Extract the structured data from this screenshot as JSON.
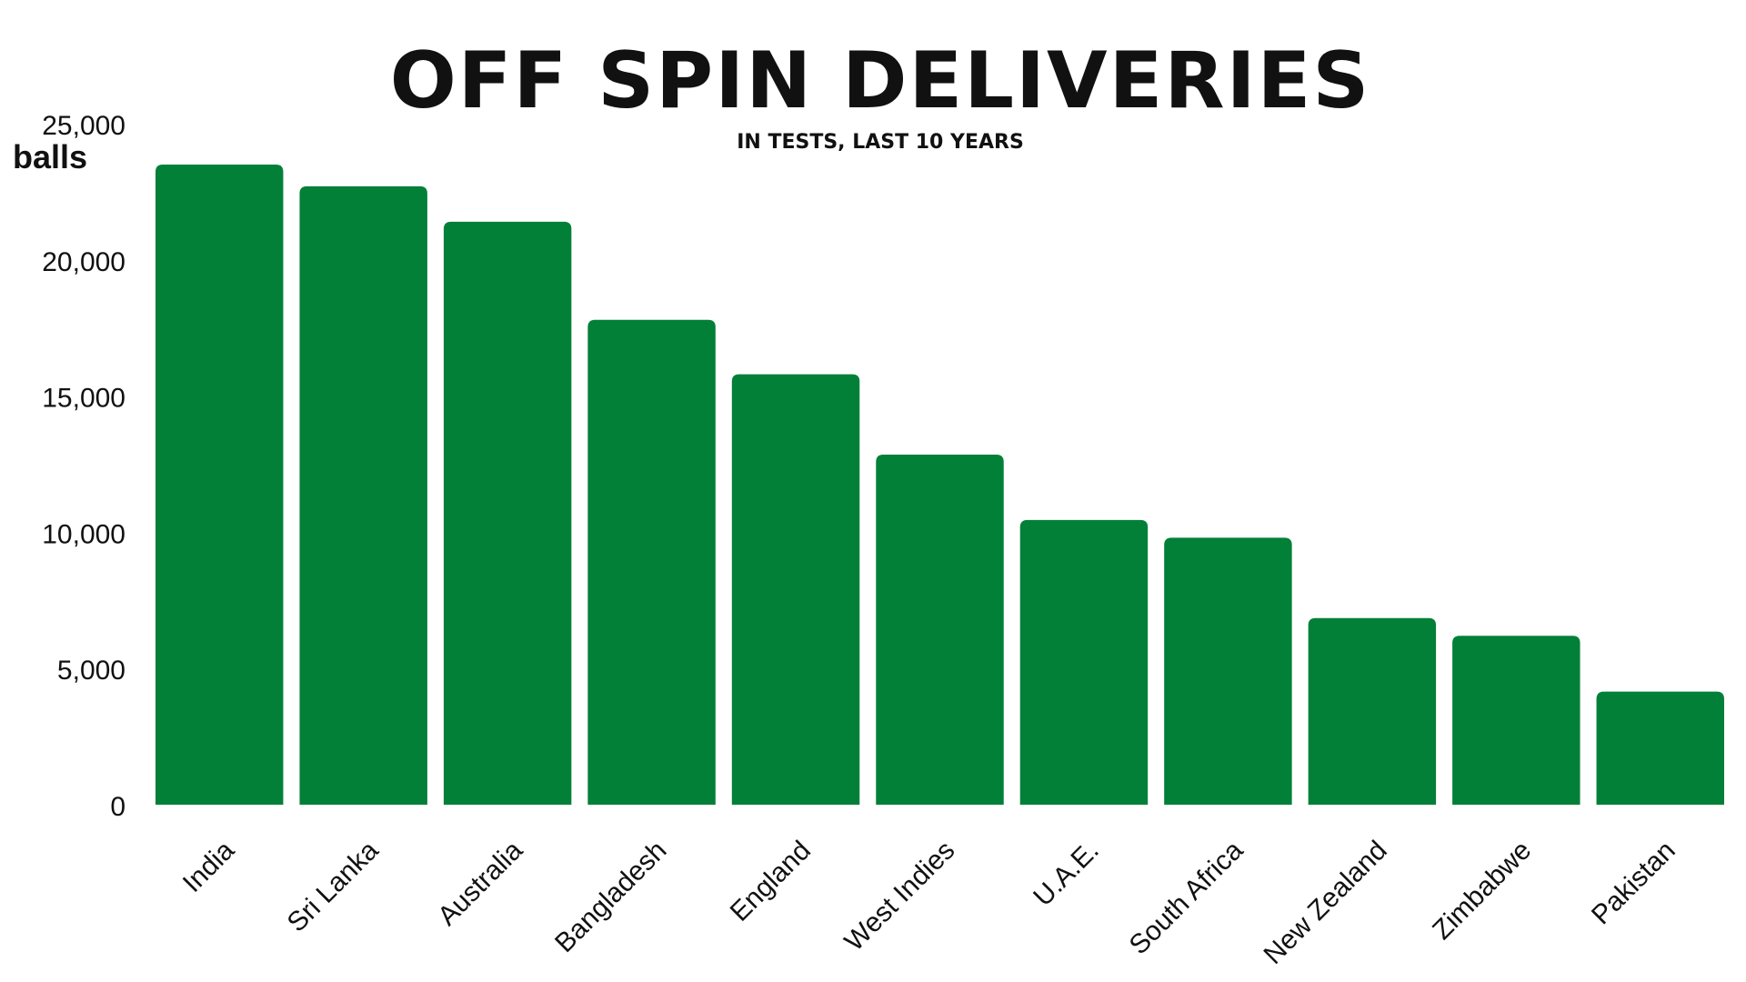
{
  "colors": {
    "bar": "#038038",
    "text": "#111111",
    "background": "#ffffff"
  },
  "chart_data": {
    "type": "bar",
    "title": "OFF SPIN DELIVERIES",
    "subtitle": "IN TESTS, LAST 10 YEARS",
    "ylabel": "balls",
    "xlabel": "",
    "ylim": [
      0,
      25000
    ],
    "yticks": [
      0,
      5000,
      10000,
      15000,
      20000,
      25000
    ],
    "ytick_labels": [
      "0",
      "5,000",
      "10,000",
      "15,000",
      "20,000",
      "25,000"
    ],
    "grid": false,
    "categories": [
      "India",
      "Sri Lanka",
      "Australia",
      "Bangladesh",
      "England",
      "West Indies",
      "U.A.E.",
      "South Africa",
      "New Zealand",
      "Zimbabwe",
      "Pakistan"
    ],
    "values": [
      23500,
      22700,
      21400,
      17800,
      15800,
      12850,
      10450,
      9800,
      6850,
      6200,
      4150
    ]
  }
}
